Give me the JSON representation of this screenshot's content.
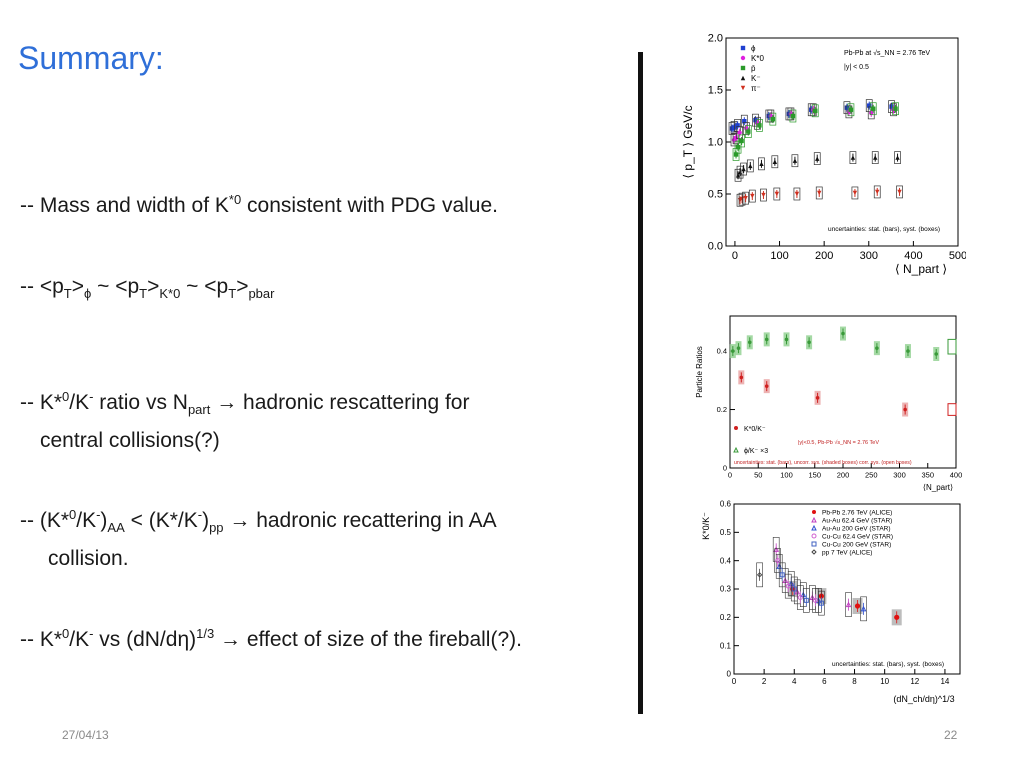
{
  "slide": {
    "title": "Summary:",
    "date": "27/04/13",
    "page_number": "22"
  },
  "bullets": {
    "b1": {
      "prefix": "-- Mass and width of K",
      "sup": "*0",
      "suffix": " consistent with PDG value."
    },
    "b2": {
      "p1": "-- <p",
      "s1": "T",
      "p2": ">",
      "s2": "ϕ",
      "p3": " ~ <p",
      "s3": "T",
      "p4": ">",
      "s4": "K*0",
      "p5": "  ~ <p",
      "s5": "T",
      "p6": ">",
      "s6": "pbar"
    },
    "b3": {
      "p1": "-- K*",
      "sup1": "0",
      "p2": "/K",
      "sup2": "-",
      "p3": " ratio vs N",
      "sub1": "part",
      "p4": " → hadronic rescattering for",
      "line2": "central collisions(?)"
    },
    "b4": {
      "p1": "-- (K*",
      "sup1": "0",
      "p2": "/K",
      "sup2": "-",
      "p3": ")",
      "sub1": "AA",
      "p4": " < (K*/K",
      "sup3": "-",
      "p5": ")",
      "sub2": "pp",
      "p6": " → hadronic recattering in AA",
      "line2": "collision."
    },
    "b5": {
      "p1": "-- K*",
      "sup1": "0",
      "p2": "/K",
      "sup2": "-",
      "p3": " vs (dN/dη)",
      "sup3": "1/3",
      "p4": " → effect of size of the fireball(?)."
    }
  },
  "chart_data": [
    {
      "type": "scatter",
      "ylabel": "⟨ p_T ⟩ GeV/c",
      "xlabel": "⟨ N_part ⟩",
      "xlim": [
        -20,
        500
      ],
      "ylim": [
        0,
        2.0
      ],
      "x_ticks": [
        "0",
        "100",
        "200",
        "300",
        "400",
        "500"
      ],
      "y_ticks": [
        "0.0",
        "0.5",
        "1.0",
        "1.5",
        "2.0"
      ],
      "annotation_1": "Pb-Pb at √s_NN = 2.76 TeV",
      "annotation_2": "|y| < 0.5",
      "note": "uncertainties: stat. (bars), syst. (boxes)",
      "legend": [
        "ϕ",
        "K*0",
        "p̄",
        "K⁻",
        "π⁻"
      ],
      "colors": {
        "phi": "#1f3fd0",
        "kstar": "#e020e0",
        "pbar": "#2a9a2a",
        "kminus": "#111111",
        "piminus": "#d03020"
      },
      "x": [
        2.5,
        7,
        15,
        30,
        55,
        85,
        130,
        180,
        260,
        310,
        360
      ],
      "series": [
        {
          "values": [
            1.13,
            1.14,
            1.16,
            1.2,
            1.21,
            1.25,
            1.27,
            1.31,
            1.33,
            1.35,
            1.34
          ]
        },
        {
          "values": [
            1.02,
            1.04,
            1.09,
            1.13,
            1.18,
            1.25,
            1.27,
            1.31,
            1.29,
            1.28,
            1.31
          ]
        },
        {
          "values": [
            0.88,
            0.95,
            1.01,
            1.1,
            1.16,
            1.22,
            1.25,
            1.3,
            1.31,
            1.32,
            1.32
          ]
        },
        {
          "values": [
            0.68,
            0.71,
            0.74,
            0.77,
            0.79,
            0.81,
            0.82,
            0.84,
            0.85,
            0.85,
            0.85
          ]
        },
        {
          "values": [
            0.44,
            0.45,
            0.46,
            0.48,
            0.49,
            0.5,
            0.5,
            0.51,
            0.51,
            0.52,
            0.52
          ]
        }
      ]
    },
    {
      "type": "scatter",
      "ylabel": "Particle Ratios",
      "xlabel": "⟨N_part⟩",
      "xlim": [
        0,
        400
      ],
      "ylim": [
        0,
        0.52
      ],
      "x_ticks": [
        "0",
        "50",
        "100",
        "150",
        "200",
        "250",
        "300",
        "350",
        "400"
      ],
      "y_ticks": [
        "0",
        "0.2",
        "0.4"
      ],
      "legend": [
        "K*0/K⁻",
        "ϕ/K⁻ ×3"
      ],
      "annotation": "|y|<0.5, Pb-Pb √s_NN = 2.76 TeV",
      "note": "uncertainties: stat. (bars), uncorr. sys. (shaded boxes) corr. sys. (open boxes)",
      "colors": {
        "kstar": "#d02020",
        "phi": "#3a9a3a"
      },
      "series": [
        {
          "x": [
            20,
            65,
            155,
            310
          ],
          "values": [
            0.31,
            0.28,
            0.24,
            0.2
          ]
        },
        {
          "x": [
            5,
            15,
            35,
            65,
            100,
            140,
            200,
            260,
            315,
            365
          ],
          "values": [
            0.4,
            0.41,
            0.43,
            0.44,
            0.44,
            0.43,
            0.46,
            0.41,
            0.4,
            0.39
          ]
        }
      ]
    },
    {
      "type": "scatter",
      "ylabel": "K*0/K⁻",
      "xlabel": "(dN_ch/dη)^1/3",
      "xlim": [
        0,
        15
      ],
      "ylim": [
        0,
        0.6
      ],
      "x_ticks": [
        "0",
        "2",
        "4",
        "6",
        "8",
        "10",
        "12",
        "14"
      ],
      "y_ticks": [
        "0",
        "0.1",
        "0.2",
        "0.3",
        "0.4",
        "0.5",
        "0.6"
      ],
      "legend": [
        "Pb-Pb 2.76 TeV (ALICE)",
        "Au-Au 62.4 GeV (STAR)",
        "Au-Au 200 GeV (STAR)",
        "Cu-Cu 62.4 GeV (STAR)",
        "Cu-Cu 200 GeV (STAR)",
        "pp 7 TeV (ALICE)"
      ],
      "note": "uncertainties: stat. (bars), syst. (boxes)",
      "colors": {
        "alice": "#e01010",
        "auau62": "#c040c0",
        "auau200": "#3050d0",
        "cucu62": "#d060d0",
        "cucu200": "#4060c0",
        "pp": "#444444"
      },
      "series": [
        {
          "x": [
            3.9,
            5.8,
            8.2,
            10.8
          ],
          "values": [
            0.3,
            0.275,
            0.24,
            0.2
          ]
        },
        {
          "x": [
            2.8,
            3.4,
            4.2,
            5.2,
            7.6
          ],
          "values": [
            0.44,
            0.33,
            0.29,
            0.27,
            0.245
          ]
        },
        {
          "x": [
            3.0,
            3.8,
            4.6,
            5.6,
            8.6
          ],
          "values": [
            0.38,
            0.32,
            0.28,
            0.26,
            0.23
          ]
        },
        {
          "x": [
            2.9,
            3.6,
            4.4,
            5.4
          ],
          "values": [
            0.4,
            0.31,
            0.27,
            0.26
          ]
        },
        {
          "x": [
            3.2,
            4.0,
            4.8,
            5.8
          ],
          "values": [
            0.35,
            0.3,
            0.26,
            0.25
          ]
        },
        {
          "x": [
            1.7
          ],
          "values": [
            0.35
          ]
        }
      ]
    }
  ]
}
